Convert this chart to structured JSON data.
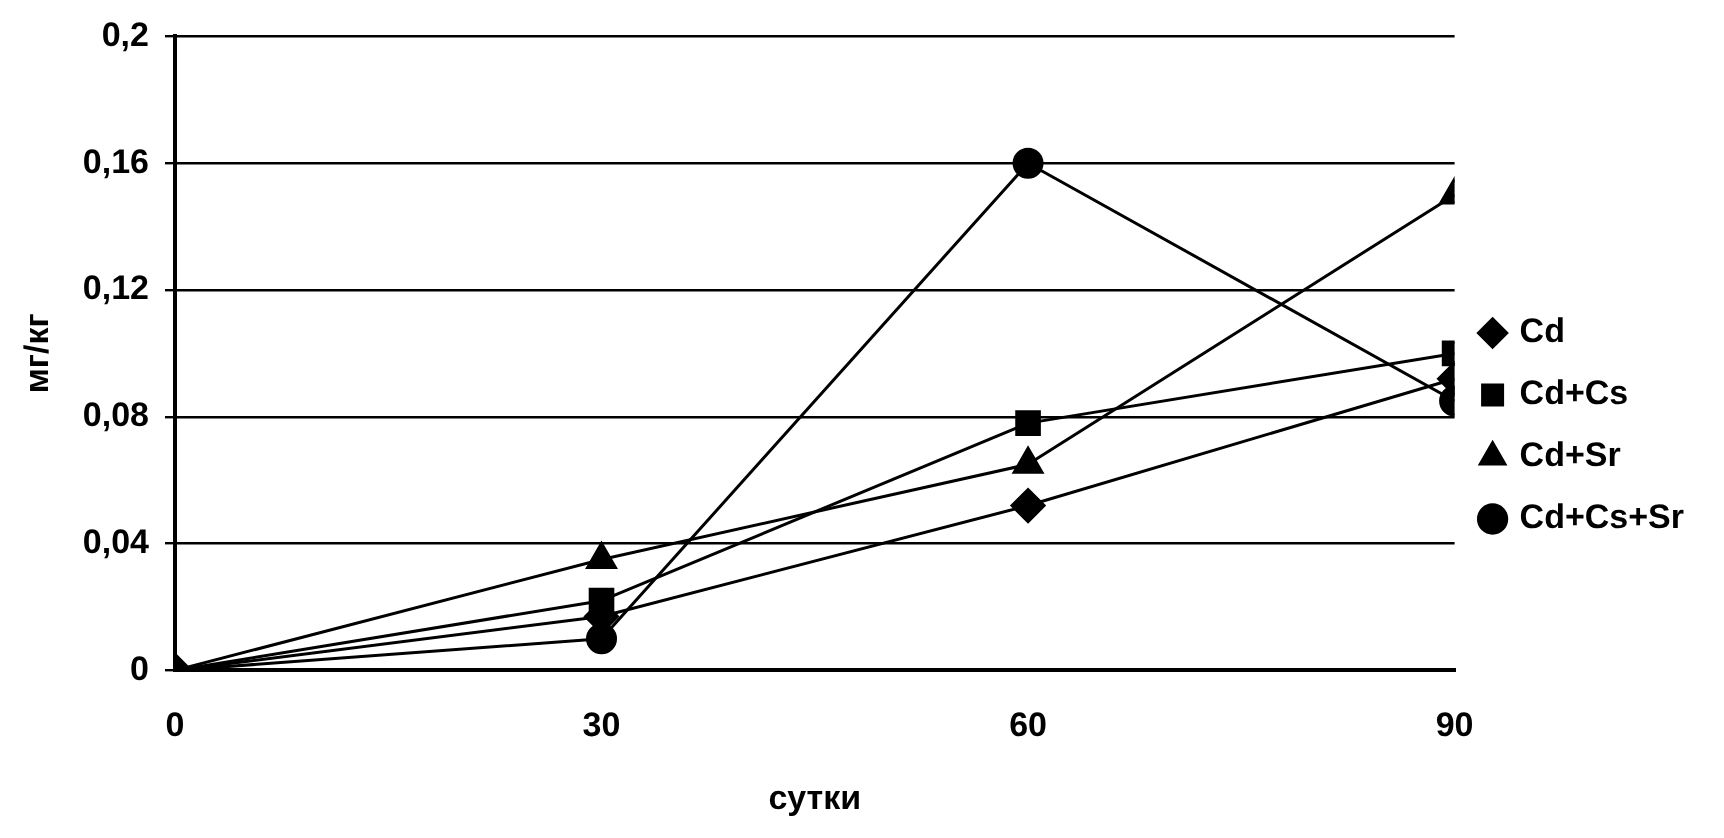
{
  "chart_data": {
    "type": "line",
    "xlabel": "сутки",
    "ylabel": "мг/кг",
    "x": [
      0,
      30,
      60,
      90
    ],
    "xlim": [
      0,
      90
    ],
    "xticks": [
      0,
      30,
      60,
      90
    ],
    "ylim": [
      0,
      0.2
    ],
    "yticks": [
      {
        "value": 0,
        "label": "0"
      },
      {
        "value": 0.04,
        "label": "0,04"
      },
      {
        "value": 0.08,
        "label": "0,08"
      },
      {
        "value": 0.12,
        "label": "0,12"
      },
      {
        "value": 0.16,
        "label": "0,16"
      },
      {
        "value": 0.2,
        "label": "0,2"
      }
    ],
    "grid": "y",
    "legend": "right",
    "line_style": "solid",
    "series": [
      {
        "name": "Cd",
        "color": "#000000",
        "marker": "diamond",
        "values": [
          0,
          0.017,
          0.052,
          0.092
        ]
      },
      {
        "name": "Cd+Cs",
        "color": "#000000",
        "marker": "square",
        "values": [
          0,
          0.022,
          0.078,
          0.1
        ]
      },
      {
        "name": "Cd+Sr",
        "color": "#000000",
        "marker": "triangle",
        "values": [
          0,
          0.035,
          0.065,
          0.15
        ]
      },
      {
        "name": "Cd+Cs+Sr",
        "color": "#000000",
        "marker": "circle",
        "values": [
          0,
          0.01,
          0.16,
          0.085
        ]
      }
    ]
  }
}
